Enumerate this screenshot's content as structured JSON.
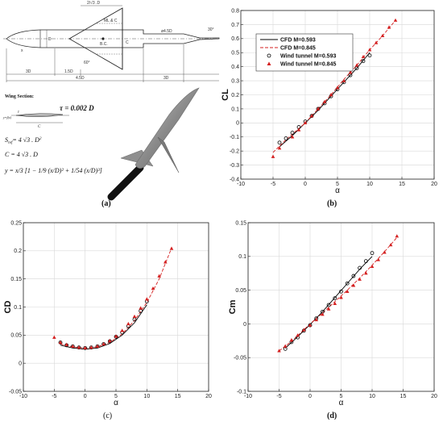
{
  "colors": {
    "cfd1": "#000000",
    "cfd2": "#d42020",
    "wt1": "#000000",
    "wt2": "#d42020",
    "grid": "#d8d8d8",
    "body": "#9a9a9a"
  },
  "panel_labels": {
    "a": "(a)",
    "b": "(b)",
    "c": "(c)",
    "d": "(d)"
  },
  "drawing": {
    "dims": {
      "tip": "2/√3 .D",
      "chord_note": "ML & C",
      "d_pos": "D",
      "p45d": "ø4.5D",
      "c_half": "C",
      "pc": "B.C.",
      "ang30": "30°",
      "ang60": "60°",
      "x3d_left": "3D",
      "x15d": "1.5D",
      "x45d": "4.5D",
      "x3d_right": "3D",
      "nose": "x"
    },
    "wing_section": {
      "title": "Wing Section:",
      "tau": "τ = 0.002 D",
      "s_ref": "S",
      "s_ref_sub": "ref",
      "s_ref_eq": "= 4 √3 . D",
      "s_ref_sup": "2",
      "c_eq": "C = 4 √3 . D",
      "y_eq": "y = x/3 [1 − 1/9 (x/D)² + 1/54 (x/D)³]",
      "sec_label_tau": "τ",
      "sec_label_c": "C",
      "sec_label_y": "y=f(x)"
    }
  },
  "chart_data": [
    {
      "id": "b",
      "type": "line",
      "xlabel": "α",
      "ylabel": "CL",
      "xlim": [
        -10,
        20
      ],
      "ylim": [
        -0.4,
        0.8
      ],
      "xticks": [
        -10,
        -5,
        0,
        5,
        10,
        15,
        20
      ],
      "yticks": [
        -0.4,
        -0.3,
        -0.2,
        -0.1,
        0,
        0.1,
        0.2,
        0.3,
        0.4,
        0.5,
        0.6,
        0.7,
        0.8
      ],
      "grid": true,
      "legend_position": "top-left",
      "series": [
        {
          "name": "CFD M=0.593",
          "kind": "line",
          "color": "#000000",
          "dash": "solid",
          "x": [
            -4,
            -2,
            0,
            2,
            4,
            6,
            8,
            10
          ],
          "y": [
            -0.17,
            -0.09,
            0.0,
            0.09,
            0.19,
            0.29,
            0.39,
            0.5
          ]
        },
        {
          "name": "CFD M=0.845",
          "kind": "line",
          "color": "#d42020",
          "dash": "dashed",
          "x": [
            -5,
            -3,
            0,
            2,
            4,
            6,
            8,
            10,
            12,
            14
          ],
          "y": [
            -0.21,
            -0.12,
            0.0,
            0.1,
            0.2,
            0.31,
            0.41,
            0.52,
            0.62,
            0.73
          ]
        },
        {
          "name": "Wind tunnel M=0.593",
          "kind": "marker",
          "marker": "circle",
          "color": "#000000",
          "x": [
            -4,
            -3,
            -2,
            -1,
            0,
            1,
            2,
            3,
            4,
            5,
            6,
            7,
            8,
            9,
            10
          ],
          "y": [
            -0.14,
            -0.11,
            -0.07,
            -0.03,
            0.01,
            0.05,
            0.1,
            0.14,
            0.19,
            0.24,
            0.29,
            0.34,
            0.39,
            0.44,
            0.48
          ]
        },
        {
          "name": "Wind tunnel M=0.845",
          "kind": "marker",
          "marker": "triangle",
          "color": "#d42020",
          "x": [
            -5,
            -4,
            -2,
            -1,
            0,
            1,
            2,
            3,
            4,
            5,
            6,
            7,
            8,
            9,
            10,
            11,
            12,
            13,
            14
          ],
          "y": [
            -0.24,
            -0.18,
            -0.1,
            -0.05,
            0.0,
            0.05,
            0.1,
            0.15,
            0.2,
            0.25,
            0.3,
            0.36,
            0.41,
            0.47,
            0.52,
            0.57,
            0.62,
            0.68,
            0.73
          ]
        }
      ]
    },
    {
      "id": "c",
      "type": "line",
      "xlabel": "α",
      "ylabel": "CD",
      "xlim": [
        -10,
        20
      ],
      "ylim": [
        -0.05,
        0.25
      ],
      "xticks": [
        -10,
        -5,
        0,
        5,
        10,
        15,
        20
      ],
      "yticks": [
        -0.05,
        0,
        0.05,
        0.1,
        0.15,
        0.2,
        0.25
      ],
      "grid": true,
      "series": [
        {
          "name": "CFD M=0.593",
          "kind": "line",
          "color": "#000000",
          "dash": "solid",
          "x": [
            -4,
            -2,
            0,
            2,
            4,
            6,
            8,
            10
          ],
          "y": [
            0.032,
            0.027,
            0.025,
            0.027,
            0.035,
            0.05,
            0.072,
            0.104
          ]
        },
        {
          "name": "CFD M=0.845",
          "kind": "line",
          "color": "#d42020",
          "dash": "dashed",
          "x": [
            -4,
            -2,
            0,
            2,
            4,
            6,
            8,
            10,
            12,
            14
          ],
          "y": [
            0.034,
            0.029,
            0.027,
            0.029,
            0.037,
            0.052,
            0.076,
            0.108,
            0.15,
            0.205
          ]
        },
        {
          "name": "Wind tunnel M=0.593",
          "kind": "marker",
          "marker": "circle",
          "color": "#000000",
          "x": [
            -4,
            -3,
            -2,
            -1,
            0,
            1,
            2,
            3,
            4,
            5,
            6,
            7,
            8,
            9,
            10
          ],
          "y": [
            0.037,
            0.032,
            0.03,
            0.028,
            0.027,
            0.028,
            0.03,
            0.034,
            0.039,
            0.047,
            0.055,
            0.066,
            0.078,
            0.093,
            0.11
          ]
        },
        {
          "name": "Wind tunnel M=0.845",
          "kind": "marker",
          "marker": "triangle",
          "color": "#d42020",
          "x": [
            -5,
            -4,
            -3,
            -2,
            -1,
            0,
            1,
            2,
            3,
            4,
            5,
            6,
            7,
            8,
            9,
            10,
            11,
            12,
            13,
            14
          ],
          "y": [
            0.046,
            0.037,
            0.033,
            0.03,
            0.028,
            0.027,
            0.028,
            0.03,
            0.034,
            0.04,
            0.048,
            0.058,
            0.07,
            0.083,
            0.098,
            0.114,
            0.133,
            0.155,
            0.18,
            0.204
          ]
        }
      ]
    },
    {
      "id": "d",
      "type": "line",
      "xlabel": "α",
      "ylabel": "Cm",
      "xlim": [
        -10,
        20
      ],
      "ylim": [
        -0.1,
        0.15
      ],
      "xticks": [
        -10,
        -5,
        0,
        5,
        10,
        15,
        20
      ],
      "yticks": [
        -0.1,
        -0.05,
        0,
        0.05,
        0.1,
        0.15
      ],
      "grid": true,
      "series": [
        {
          "name": "CFD M=0.593",
          "kind": "line",
          "color": "#000000",
          "dash": "solid",
          "x": [
            -4,
            -2,
            0,
            2,
            4,
            6,
            8,
            10
          ],
          "y": [
            -0.036,
            -0.019,
            -0.001,
            0.018,
            0.039,
            0.06,
            0.081,
            0.1
          ]
        },
        {
          "name": "CFD M=0.845",
          "kind": "line",
          "color": "#d42020",
          "dash": "dashed",
          "x": [
            -5,
            -3,
            0,
            2,
            4,
            6,
            8,
            10,
            12,
            14
          ],
          "y": [
            -0.04,
            -0.026,
            0.0,
            0.016,
            0.033,
            0.05,
            0.068,
            0.087,
            0.107,
            0.128
          ]
        },
        {
          "name": "Wind tunnel M=0.593",
          "kind": "marker",
          "marker": "circle",
          "color": "#000000",
          "x": [
            -4,
            -3,
            -2,
            -1,
            0,
            1,
            2,
            3,
            4,
            5,
            6,
            7,
            8,
            9,
            10
          ],
          "y": [
            -0.037,
            -0.027,
            -0.02,
            -0.01,
            -0.002,
            0.008,
            0.018,
            0.028,
            0.038,
            0.048,
            0.06,
            0.071,
            0.083,
            0.093,
            0.105
          ]
        },
        {
          "name": "Wind tunnel M=0.845",
          "kind": "marker",
          "marker": "triangle",
          "color": "#d42020",
          "x": [
            -5,
            -4,
            -3,
            -2,
            -1,
            0,
            1,
            2,
            3,
            4,
            5,
            6,
            7,
            8,
            9,
            10,
            11,
            12,
            13,
            14
          ],
          "y": [
            -0.04,
            -0.033,
            -0.024,
            -0.017,
            -0.009,
            -0.002,
            0.006,
            0.014,
            0.022,
            0.03,
            0.039,
            0.048,
            0.057,
            0.066,
            0.075,
            0.085,
            0.095,
            0.106,
            0.117,
            0.13
          ]
        }
      ]
    }
  ]
}
